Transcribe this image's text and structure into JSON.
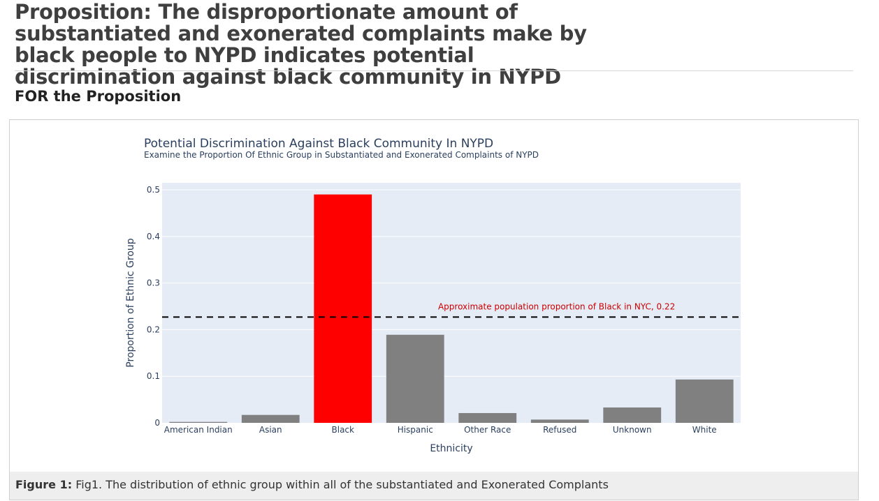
{
  "page": {
    "title": "Proposition: The disproportionate amount of substantiated and exonerated complaints make by black people to NYPD indicates potential discrimination against black community in NYPD",
    "section_heading": "FOR the Proposition"
  },
  "figure": {
    "caption_label": "Figure 1:",
    "caption_text": "Fig1. The distribution of ethnic group within all of the substantiated and Exonerated Complants"
  },
  "chart_data": {
    "type": "bar",
    "title": "Potential Discrimination Against Black Community In NYPD",
    "subtitle": "Examine the Proportion Of Ethnic Group in Substantiated and Exonerated Complaints of NYPD",
    "xlabel": "Ethnicity",
    "ylabel": "Proportion of Ethnic Group",
    "categories": [
      "American Indian",
      "Asian",
      "Black",
      "Hispanic",
      "Other Race",
      "Refused",
      "Unknown",
      "White"
    ],
    "values": [
      0.002,
      0.017,
      0.49,
      0.189,
      0.021,
      0.007,
      0.033,
      0.093
    ],
    "colors": [
      "#808080",
      "#808080",
      "#ff0000",
      "#808080",
      "#808080",
      "#808080",
      "#808080",
      "#808080"
    ],
    "ylim": [
      0,
      0.515
    ],
    "yticks": [
      0,
      0.1,
      0.2,
      0.3,
      0.4,
      0.5
    ],
    "ytick_labels": [
      "0",
      "0.1",
      "0.2",
      "0.3",
      "0.4",
      "0.5"
    ],
    "plot_bg": "#e5ecf6",
    "grid": true,
    "reference_line": {
      "value": 0.227,
      "style": "dashed",
      "color": "#000000",
      "label": "Approximate population proportion of Black in NYC, 0.22",
      "label_color": "#cc0000"
    }
  }
}
